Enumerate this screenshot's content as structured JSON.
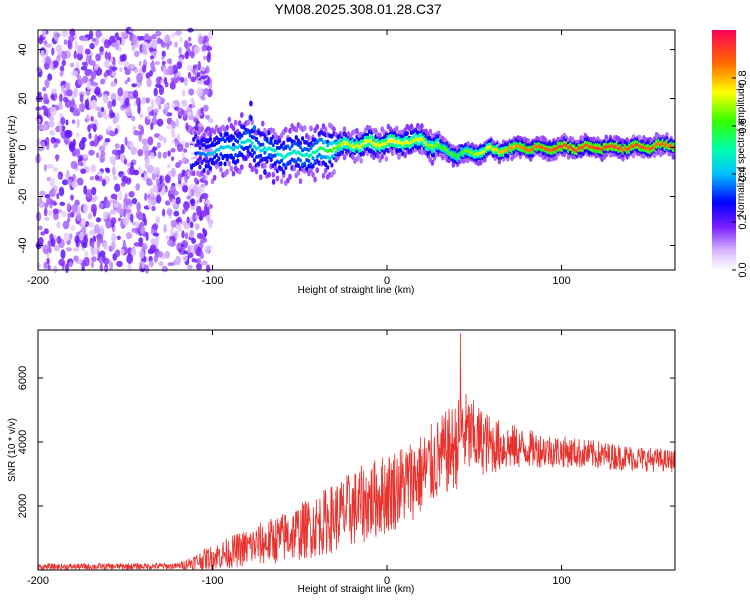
{
  "title": "YM08.2025.308.01.28.C37",
  "chart_data": [
    {
      "type": "heatmap",
      "title": "YM08.2025.308.01.28.C37",
      "xlabel": "Height of straight line (km)",
      "ylabel": "Frequency (Hz)",
      "xlim": [
        -200,
        165
      ],
      "ylim": [
        -50,
        48
      ],
      "xticks": [
        "-200",
        "-100",
        "0",
        "100"
      ],
      "xtick_values": [
        -200,
        -100,
        0,
        100
      ],
      "yticks": [
        "40",
        "20",
        "0",
        "-20",
        "-40"
      ],
      "ytick_values": [
        40,
        20,
        0,
        -20,
        -40
      ],
      "colorbar": {
        "label": "Normalized spectral amplitude",
        "ticks": [
          "0.0",
          "0.2",
          "0.4",
          "0.6",
          "0.8"
        ],
        "tick_values": [
          0.0,
          0.2,
          0.4,
          0.6,
          0.8
        ],
        "range": [
          0,
          1
        ]
      },
      "description_of_data": {
        "noise_region_x": [
          -200,
          -105
        ],
        "noise_amplitude": 0.15,
        "ridge_points": [
          {
            "x": -110,
            "freq": -3,
            "amp": 0.3
          },
          {
            "x": -100,
            "freq": -2,
            "amp": 0.4
          },
          {
            "x": -80,
            "freq": 2,
            "amp": 0.45
          },
          {
            "x": -60,
            "freq": -3,
            "amp": 0.45
          },
          {
            "x": -40,
            "freq": -2,
            "amp": 0.5
          },
          {
            "x": -25,
            "freq": 1,
            "amp": 0.7
          },
          {
            "x": 0,
            "freq": 2,
            "amp": 0.75
          },
          {
            "x": 20,
            "freq": 3,
            "amp": 0.7
          },
          {
            "x": 40,
            "freq": -3,
            "amp": 0.6
          },
          {
            "x": 60,
            "freq": -1,
            "amp": 0.75
          },
          {
            "x": 80,
            "freq": 0,
            "amp": 0.85
          },
          {
            "x": 100,
            "freq": 0,
            "amp": 0.9
          },
          {
            "x": 130,
            "freq": 0,
            "amp": 0.9
          },
          {
            "x": 165,
            "freq": 1,
            "amp": 0.85
          }
        ]
      }
    },
    {
      "type": "line",
      "xlabel": "Height of straight line (km)",
      "ylabel": "SNR (10 * v/v)",
      "xlim": [
        -200,
        165
      ],
      "ylim": [
        0,
        7500
      ],
      "xticks": [
        "-200",
        "-100",
        "0",
        "100"
      ],
      "xtick_values": [
        -200,
        -100,
        0,
        100
      ],
      "yticks": [
        "2000",
        "4000",
        "6000"
      ],
      "ytick_values": [
        2000,
        4000,
        6000
      ],
      "color": "#e8322e",
      "envelope": {
        "x": [
          -200,
          -120,
          -100,
          -80,
          -60,
          -40,
          -20,
          0,
          20,
          30,
          40,
          43,
          50,
          60,
          80,
          100,
          120,
          140,
          165
        ],
        "mid": [
          100,
          120,
          400,
          700,
          1000,
          1400,
          1900,
          2400,
          3000,
          3500,
          3900,
          4300,
          4100,
          3900,
          3800,
          3700,
          3600,
          3500,
          3400
        ],
        "spread": [
          100,
          100,
          400,
          600,
          800,
          1000,
          1200,
          1300,
          1300,
          1300,
          1400,
          1400,
          1200,
          900,
          600,
          500,
          450,
          400,
          350
        ]
      },
      "peak": {
        "x": 42,
        "y": 7400
      }
    }
  ]
}
